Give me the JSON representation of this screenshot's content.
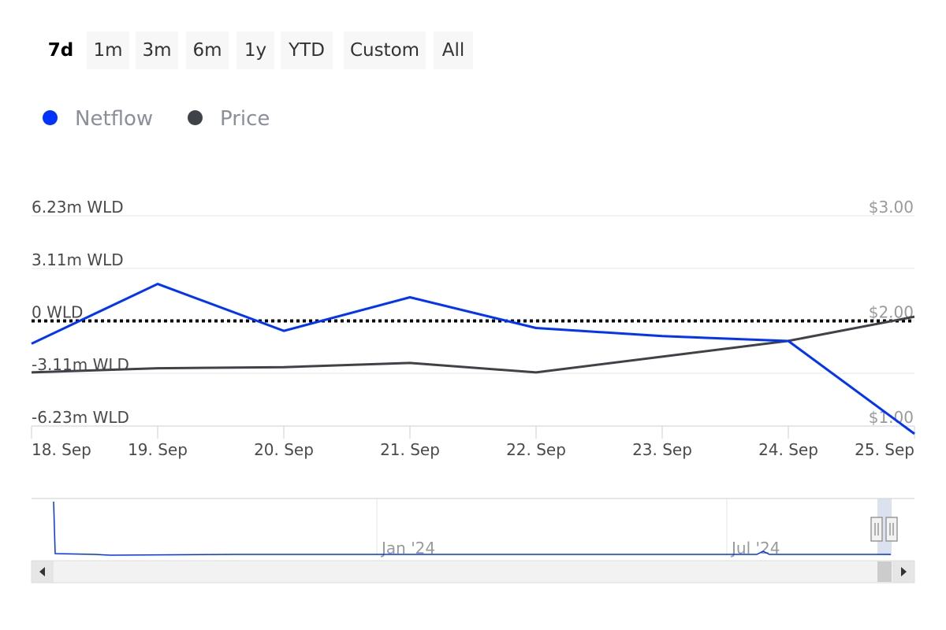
{
  "range_selector": {
    "buttons": [
      "7d",
      "1m",
      "3m",
      "6m",
      "1y",
      "YTD",
      "Custom",
      "All"
    ],
    "active": "7d"
  },
  "colors": {
    "netflow": "#0033ff",
    "price": "#3f4347",
    "grid": "#e6e6e6",
    "zero_line": "#000000",
    "axis_text": "#4a4a4a",
    "right_axis_text": "#9a9a9a",
    "navigator_mask": "#ccd4e8"
  },
  "chart_data": {
    "type": "line",
    "title": "",
    "x": [
      "18. Sep",
      "19. Sep",
      "20. Sep",
      "21. Sep",
      "22. Sep",
      "23. Sep",
      "24. Sep",
      "25. Sep"
    ],
    "series": [
      {
        "name": "Netflow",
        "axis": "left",
        "unit": "WLD",
        "values": [
          -1.35,
          2.19,
          -0.59,
          1.4,
          -0.42,
          -0.9,
          -1.19,
          -6.69
        ]
      },
      {
        "name": "Price",
        "axis": "right",
        "unit": "USD",
        "values": [
          1.51,
          1.55,
          1.56,
          1.6,
          1.51,
          1.66,
          1.81,
          2.04
        ]
      }
    ],
    "left_axis": {
      "ticks": [
        6.23,
        3.11,
        0,
        -3.11,
        -6.23
      ],
      "tick_labels": [
        "6.23m WLD",
        "3.11m WLD",
        "0 WLD",
        "-3.11m WLD",
        "-6.23m WLD"
      ],
      "range": [
        -6.23,
        6.23
      ]
    },
    "right_axis": {
      "ticks": [
        3,
        2,
        1
      ],
      "tick_labels": [
        "$3.00",
        "$2.00",
        "$1.00"
      ],
      "range": [
        1,
        3
      ]
    },
    "zero_line": "dotted",
    "grid": true,
    "legend_position": "top-left",
    "navigator": {
      "labels": [
        "Jan '24",
        "Jul '24"
      ]
    }
  }
}
